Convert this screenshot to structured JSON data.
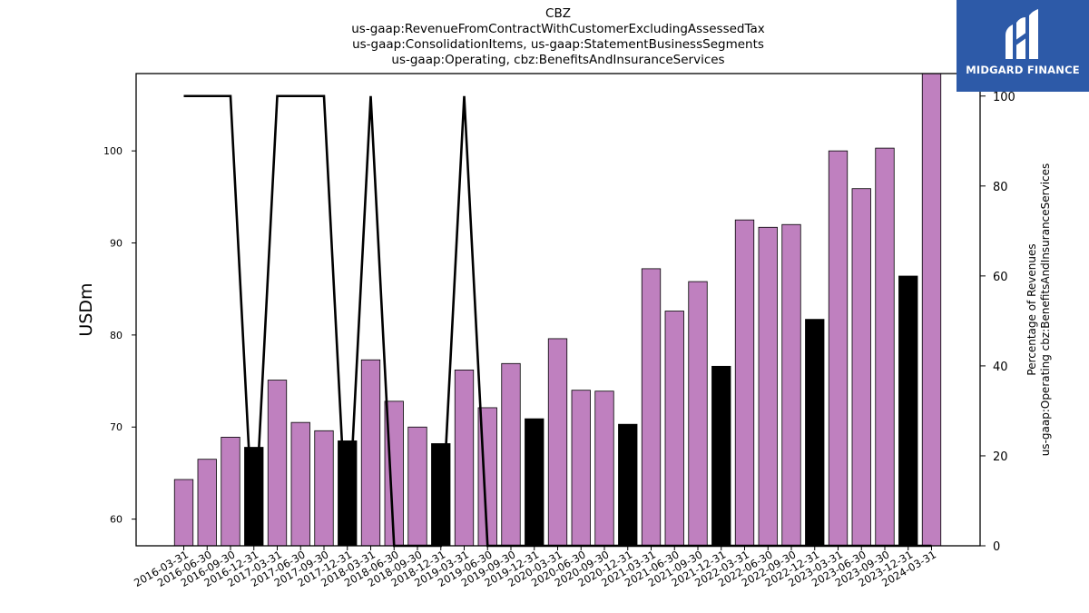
{
  "chart_data": {
    "type": "bar",
    "title_lines": [
      "CBZ",
      "us-gaap:RevenueFromContractWithCustomerExcludingAssessedTax",
      "us-gaap:ConsolidationItems, us-gaap:StatementBusinessSegments",
      "us-gaap:Operating, cbz:BenefitsAndInsuranceServices"
    ],
    "ylabel": "USDm",
    "y2label_lines": [
      "Percentage of Revenues",
      "us-gaap:Operating cbz:BenefitsAndInsuranceServices"
    ],
    "ylim": [
      57.1,
      108.4
    ],
    "y_ticks": [
      60,
      70,
      80,
      90,
      100
    ],
    "y2lim": [
      0,
      105
    ],
    "y2_ticks": [
      0,
      20,
      40,
      60,
      80,
      100
    ],
    "categories": [
      "2016-03-31",
      "2016-06-30",
      "2016-09-30",
      "2016-12-31",
      "2017-03-31",
      "2017-06-30",
      "2017-09-30",
      "2017-12-31",
      "2018-03-31",
      "2018-06-30",
      "2018-09-30",
      "2018-12-31",
      "2019-03-31",
      "2019-06-30",
      "2019-09-30",
      "2019-12-31",
      "2020-03-31",
      "2020-06-30",
      "2020-09-30",
      "2020-12-31",
      "2021-03-31",
      "2021-06-30",
      "2021-09-30",
      "2021-12-31",
      "2022-03-31",
      "2022-06-30",
      "2022-09-30",
      "2022-12-31",
      "2023-03-31",
      "2023-06-30",
      "2023-09-30",
      "2023-12-31",
      "2024-03-31"
    ],
    "values": [
      64.3,
      66.5,
      68.9,
      67.8,
      75.1,
      70.5,
      69.6,
      68.5,
      77.3,
      72.8,
      70.0,
      68.2,
      76.2,
      72.1,
      76.9,
      70.9,
      79.6,
      74.0,
      73.9,
      70.3,
      87.2,
      82.6,
      85.8,
      76.6,
      92.5,
      91.7,
      92.0,
      81.7,
      100.0,
      95.9,
      100.3,
      86.4,
      108.4
    ],
    "bar_colors": [
      "#bf80bf",
      "#bf80bf",
      "#bf80bf",
      "#000000",
      "#bf80bf",
      "#bf80bf",
      "#bf80bf",
      "#000000",
      "#bf80bf",
      "#bf80bf",
      "#bf80bf",
      "#000000",
      "#bf80bf",
      "#bf80bf",
      "#bf80bf",
      "#000000",
      "#bf80bf",
      "#bf80bf",
      "#bf80bf",
      "#000000",
      "#bf80bf",
      "#bf80bf",
      "#bf80bf",
      "#000000",
      "#bf80bf",
      "#bf80bf",
      "#bf80bf",
      "#000000",
      "#bf80bf",
      "#bf80bf",
      "#bf80bf",
      "#000000",
      "#bf80bf"
    ],
    "line_values": [
      100,
      100,
      100,
      0,
      100,
      100,
      100,
      0,
      100,
      0,
      0,
      0,
      100,
      0,
      0,
      0,
      0,
      0,
      0,
      0,
      0,
      0,
      0,
      0,
      0,
      0,
      0,
      0,
      0,
      0,
      0,
      0,
      0
    ],
    "line_color": "#000000",
    "grid": false
  },
  "logo": {
    "text": "MIDGARD FINANCE",
    "background": "#2d5aa8"
  }
}
